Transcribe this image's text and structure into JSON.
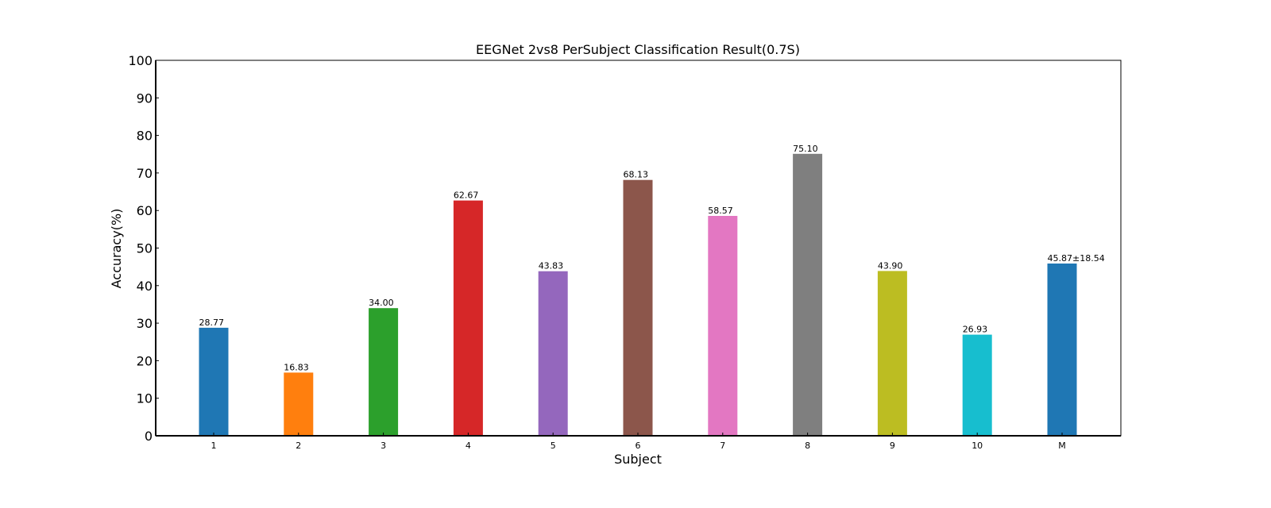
{
  "chart_data": {
    "type": "bar",
    "title": "EEGNet 2vs8 PerSubject Classification Result(0.7S)",
    "xlabel": "Subject",
    "ylabel": "Accuracy(%)",
    "ylim": [
      0,
      100
    ],
    "yticks": [
      0,
      10,
      20,
      30,
      40,
      50,
      60,
      70,
      80,
      90,
      100
    ],
    "grid": false,
    "legend": "none",
    "categories": [
      "1",
      "2",
      "3",
      "4",
      "5",
      "6",
      "7",
      "8",
      "9",
      "10",
      "M"
    ],
    "values": [
      28.77,
      16.83,
      34.0,
      62.67,
      43.83,
      68.13,
      58.57,
      75.1,
      43.9,
      26.93,
      45.87
    ],
    "data_labels": [
      "28.77",
      "16.83",
      "34.00",
      "62.67",
      "43.83",
      "68.13",
      "58.57",
      "75.10",
      "43.90",
      "26.93",
      "45.87±18.54"
    ],
    "colors": [
      "#1f77b4",
      "#ff7f0e",
      "#2ca02c",
      "#d62728",
      "#9467bd",
      "#8c564b",
      "#e377c2",
      "#7f7f7f",
      "#bcbd22",
      "#17becf",
      "#1f77b4"
    ],
    "data_label_colors": [
      "#000000",
      "#000000",
      "#000000",
      "#000000",
      "#000000",
      "#000000",
      "#000000",
      "#000000",
      "#000000",
      "#000000",
      "#ff0000"
    ]
  }
}
